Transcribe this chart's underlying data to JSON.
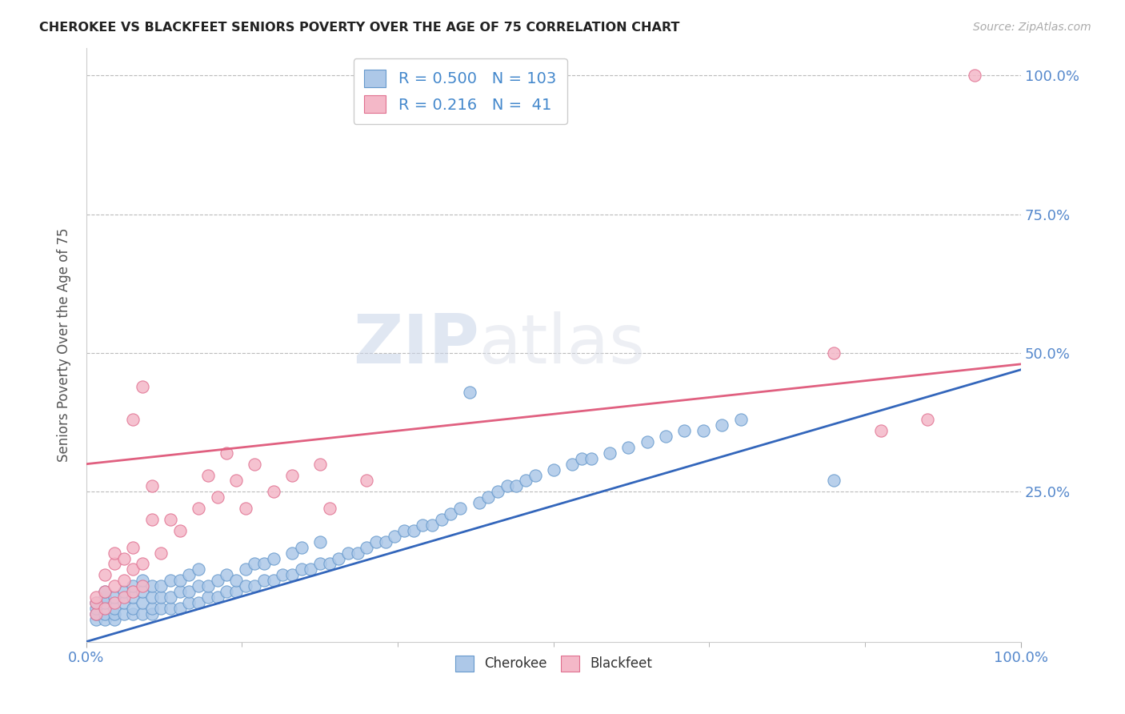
{
  "title": "CHEROKEE VS BLACKFEET SENIORS POVERTY OVER THE AGE OF 75 CORRELATION CHART",
  "source": "Source: ZipAtlas.com",
  "ylabel": "Seniors Poverty Over the Age of 75",
  "xlim": [
    0.0,
    1.0
  ],
  "ylim": [
    -0.02,
    1.05
  ],
  "cherokee_color": "#adc8e8",
  "cherokee_edge": "#6699cc",
  "blackfeet_color": "#f4b8c8",
  "blackfeet_edge": "#e07090",
  "cherokee_line_color": "#3366bb",
  "blackfeet_line_color": "#e06080",
  "cherokee_R": "0.500",
  "cherokee_N": "103",
  "blackfeet_R": "0.216",
  "blackfeet_N": " 41",
  "watermark_zip": "ZIP",
  "watermark_atlas": "atlas",
  "background_color": "#ffffff",
  "grid_color": "#bbbbbb",
  "ytick_positions": [
    0.25,
    0.5,
    0.75,
    1.0
  ],
  "ytick_labels": [
    "25.0%",
    "50.0%",
    "75.0%",
    "100.0%"
  ],
  "xtick_positions": [
    0.0,
    1.0
  ],
  "xtick_labels": [
    "0.0%",
    "100.0%"
  ],
  "cherokee_trendline": [
    [
      0.0,
      -0.02
    ],
    [
      1.0,
      0.47
    ]
  ],
  "blackfeet_trendline": [
    [
      0.0,
      0.3
    ],
    [
      1.0,
      0.48
    ]
  ],
  "cherokee_scatter": [
    [
      0.01,
      0.02
    ],
    [
      0.01,
      0.03
    ],
    [
      0.01,
      0.04
    ],
    [
      0.01,
      0.05
    ],
    [
      0.02,
      0.02
    ],
    [
      0.02,
      0.03
    ],
    [
      0.02,
      0.05
    ],
    [
      0.02,
      0.06
    ],
    [
      0.02,
      0.07
    ],
    [
      0.03,
      0.02
    ],
    [
      0.03,
      0.03
    ],
    [
      0.03,
      0.04
    ],
    [
      0.03,
      0.06
    ],
    [
      0.04,
      0.03
    ],
    [
      0.04,
      0.05
    ],
    [
      0.04,
      0.07
    ],
    [
      0.05,
      0.03
    ],
    [
      0.05,
      0.04
    ],
    [
      0.05,
      0.06
    ],
    [
      0.05,
      0.08
    ],
    [
      0.06,
      0.03
    ],
    [
      0.06,
      0.05
    ],
    [
      0.06,
      0.07
    ],
    [
      0.06,
      0.09
    ],
    [
      0.07,
      0.03
    ],
    [
      0.07,
      0.04
    ],
    [
      0.07,
      0.06
    ],
    [
      0.07,
      0.08
    ],
    [
      0.08,
      0.04
    ],
    [
      0.08,
      0.06
    ],
    [
      0.08,
      0.08
    ],
    [
      0.09,
      0.04
    ],
    [
      0.09,
      0.06
    ],
    [
      0.09,
      0.09
    ],
    [
      0.1,
      0.04
    ],
    [
      0.1,
      0.07
    ],
    [
      0.1,
      0.09
    ],
    [
      0.11,
      0.05
    ],
    [
      0.11,
      0.07
    ],
    [
      0.11,
      0.1
    ],
    [
      0.12,
      0.05
    ],
    [
      0.12,
      0.08
    ],
    [
      0.12,
      0.11
    ],
    [
      0.13,
      0.06
    ],
    [
      0.13,
      0.08
    ],
    [
      0.14,
      0.06
    ],
    [
      0.14,
      0.09
    ],
    [
      0.15,
      0.07
    ],
    [
      0.15,
      0.1
    ],
    [
      0.16,
      0.07
    ],
    [
      0.16,
      0.09
    ],
    [
      0.17,
      0.08
    ],
    [
      0.17,
      0.11
    ],
    [
      0.18,
      0.08
    ],
    [
      0.18,
      0.12
    ],
    [
      0.19,
      0.09
    ],
    [
      0.19,
      0.12
    ],
    [
      0.2,
      0.09
    ],
    [
      0.2,
      0.13
    ],
    [
      0.21,
      0.1
    ],
    [
      0.22,
      0.1
    ],
    [
      0.22,
      0.14
    ],
    [
      0.23,
      0.11
    ],
    [
      0.23,
      0.15
    ],
    [
      0.24,
      0.11
    ],
    [
      0.25,
      0.12
    ],
    [
      0.25,
      0.16
    ],
    [
      0.26,
      0.12
    ],
    [
      0.27,
      0.13
    ],
    [
      0.28,
      0.14
    ],
    [
      0.29,
      0.14
    ],
    [
      0.3,
      0.15
    ],
    [
      0.31,
      0.16
    ],
    [
      0.32,
      0.16
    ],
    [
      0.33,
      0.17
    ],
    [
      0.34,
      0.18
    ],
    [
      0.35,
      0.18
    ],
    [
      0.36,
      0.19
    ],
    [
      0.37,
      0.19
    ],
    [
      0.38,
      0.2
    ],
    [
      0.39,
      0.21
    ],
    [
      0.4,
      0.22
    ],
    [
      0.41,
      0.43
    ],
    [
      0.42,
      0.23
    ],
    [
      0.43,
      0.24
    ],
    [
      0.44,
      0.25
    ],
    [
      0.45,
      0.26
    ],
    [
      0.46,
      0.26
    ],
    [
      0.47,
      0.27
    ],
    [
      0.48,
      0.28
    ],
    [
      0.5,
      0.29
    ],
    [
      0.52,
      0.3
    ],
    [
      0.53,
      0.31
    ],
    [
      0.54,
      0.31
    ],
    [
      0.56,
      0.32
    ],
    [
      0.58,
      0.33
    ],
    [
      0.6,
      0.34
    ],
    [
      0.62,
      0.35
    ],
    [
      0.64,
      0.36
    ],
    [
      0.66,
      0.36
    ],
    [
      0.68,
      0.37
    ],
    [
      0.7,
      0.38
    ],
    [
      0.8,
      0.27
    ]
  ],
  "blackfeet_scatter": [
    [
      0.01,
      0.03
    ],
    [
      0.01,
      0.05
    ],
    [
      0.01,
      0.06
    ],
    [
      0.02,
      0.04
    ],
    [
      0.02,
      0.07
    ],
    [
      0.02,
      0.1
    ],
    [
      0.03,
      0.05
    ],
    [
      0.03,
      0.08
    ],
    [
      0.03,
      0.12
    ],
    [
      0.03,
      0.14
    ],
    [
      0.04,
      0.06
    ],
    [
      0.04,
      0.09
    ],
    [
      0.04,
      0.13
    ],
    [
      0.05,
      0.07
    ],
    [
      0.05,
      0.11
    ],
    [
      0.05,
      0.15
    ],
    [
      0.05,
      0.38
    ],
    [
      0.06,
      0.08
    ],
    [
      0.06,
      0.12
    ],
    [
      0.06,
      0.44
    ],
    [
      0.07,
      0.2
    ],
    [
      0.07,
      0.26
    ],
    [
      0.08,
      0.14
    ],
    [
      0.09,
      0.2
    ],
    [
      0.1,
      0.18
    ],
    [
      0.12,
      0.22
    ],
    [
      0.13,
      0.28
    ],
    [
      0.14,
      0.24
    ],
    [
      0.15,
      0.32
    ],
    [
      0.16,
      0.27
    ],
    [
      0.17,
      0.22
    ],
    [
      0.18,
      0.3
    ],
    [
      0.2,
      0.25
    ],
    [
      0.22,
      0.28
    ],
    [
      0.25,
      0.3
    ],
    [
      0.26,
      0.22
    ],
    [
      0.3,
      0.27
    ],
    [
      0.8,
      0.5
    ],
    [
      0.85,
      0.36
    ],
    [
      0.9,
      0.38
    ],
    [
      0.95,
      1.0
    ]
  ]
}
